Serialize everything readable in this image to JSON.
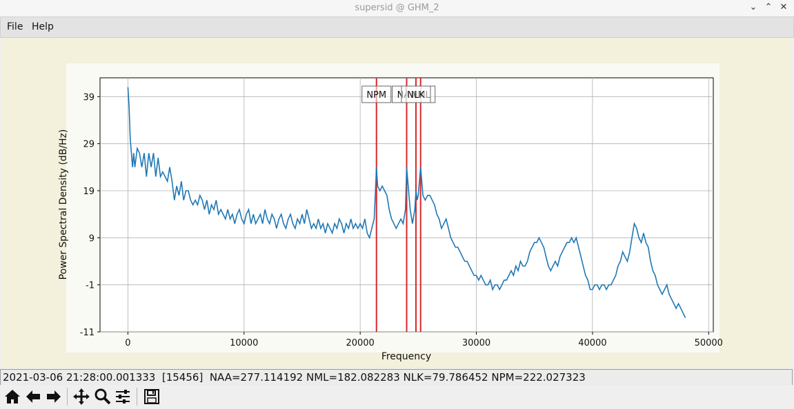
{
  "window": {
    "title": "supersid @ GHM_2",
    "controls": [
      "chevron-down-icon",
      "chevron-up-icon",
      "close-icon"
    ]
  },
  "menu": {
    "file": "File",
    "help": "Help"
  },
  "status_text": "2021-03-06 21:28:00.001333  [15456]  NAA=277.114192 NML=182.082283 NLK=79.786452 NPM=222.027323",
  "toolbar": {
    "icons": [
      "home-icon",
      "back-icon",
      "forward-icon",
      "pan-icon",
      "zoom-icon",
      "configure-icon",
      "save-icon"
    ]
  },
  "chart_data": {
    "type": "line",
    "xlabel": "Frequency",
    "ylabel": "Power Spectral Density (dB/Hz)",
    "xlim": [
      -2400,
      50400
    ],
    "ylim": [
      -11,
      43
    ],
    "xticks": [
      0,
      10000,
      20000,
      30000,
      40000,
      50000
    ],
    "yticks": [
      -11,
      -1,
      9,
      19,
      29,
      39
    ],
    "grid": true,
    "line_color": "#1f77b4",
    "marker_color": "#d62728",
    "markers": [
      {
        "label": "NPM",
        "x": 21400
      },
      {
        "label": "NAA",
        "x": 24000
      },
      {
        "label": "NML",
        "x": 25200
      },
      {
        "label": "NLK",
        "x": 24800
      }
    ],
    "series": [
      {
        "points": [
          [
            0,
            41
          ],
          [
            100,
            37
          ],
          [
            200,
            30
          ],
          [
            300,
            27
          ],
          [
            400,
            24
          ],
          [
            500,
            27
          ],
          [
            600,
            24
          ],
          [
            800,
            28
          ],
          [
            1000,
            27
          ],
          [
            1200,
            24
          ],
          [
            1400,
            27
          ],
          [
            1600,
            22
          ],
          [
            1800,
            27
          ],
          [
            2000,
            24
          ],
          [
            2200,
            27
          ],
          [
            2400,
            22
          ],
          [
            2600,
            26
          ],
          [
            2800,
            22
          ],
          [
            3000,
            23
          ],
          [
            3200,
            22
          ],
          [
            3400,
            21
          ],
          [
            3600,
            24
          ],
          [
            3800,
            21
          ],
          [
            4000,
            17
          ],
          [
            4200,
            20
          ],
          [
            4400,
            18
          ],
          [
            4600,
            21
          ],
          [
            4800,
            17
          ],
          [
            5000,
            19
          ],
          [
            5200,
            19
          ],
          [
            5400,
            17
          ],
          [
            5600,
            16
          ],
          [
            5800,
            17
          ],
          [
            6000,
            16
          ],
          [
            6200,
            18
          ],
          [
            6400,
            17
          ],
          [
            6600,
            15
          ],
          [
            6800,
            17
          ],
          [
            7000,
            14
          ],
          [
            7200,
            16
          ],
          [
            7400,
            15
          ],
          [
            7600,
            17
          ],
          [
            7800,
            14
          ],
          [
            8000,
            15
          ],
          [
            8200,
            14
          ],
          [
            8400,
            13
          ],
          [
            8600,
            15
          ],
          [
            8800,
            13
          ],
          [
            9000,
            14
          ],
          [
            9200,
            12
          ],
          [
            9400,
            14
          ],
          [
            9600,
            15
          ],
          [
            9800,
            13
          ],
          [
            10000,
            12
          ],
          [
            10200,
            14
          ],
          [
            10400,
            15
          ],
          [
            10600,
            12
          ],
          [
            10800,
            14
          ],
          [
            11000,
            12
          ],
          [
            11200,
            13
          ],
          [
            11400,
            14
          ],
          [
            11600,
            12
          ],
          [
            11800,
            15
          ],
          [
            12000,
            13
          ],
          [
            12200,
            12
          ],
          [
            12400,
            14
          ],
          [
            12600,
            13
          ],
          [
            12800,
            11
          ],
          [
            13000,
            13
          ],
          [
            13200,
            14
          ],
          [
            13400,
            12
          ],
          [
            13600,
            11
          ],
          [
            13800,
            13
          ],
          [
            14000,
            14
          ],
          [
            14200,
            12
          ],
          [
            14400,
            11
          ],
          [
            14600,
            13
          ],
          [
            14800,
            12
          ],
          [
            15000,
            14
          ],
          [
            15200,
            12
          ],
          [
            15400,
            15
          ],
          [
            15600,
            13
          ],
          [
            15800,
            11
          ],
          [
            16000,
            12
          ],
          [
            16200,
            11
          ],
          [
            16400,
            13
          ],
          [
            16600,
            11
          ],
          [
            16800,
            12
          ],
          [
            17000,
            10
          ],
          [
            17200,
            12
          ],
          [
            17400,
            11
          ],
          [
            17600,
            10
          ],
          [
            17800,
            12
          ],
          [
            18000,
            11
          ],
          [
            18200,
            13
          ],
          [
            18400,
            12
          ],
          [
            18600,
            10
          ],
          [
            18800,
            12
          ],
          [
            19000,
            11
          ],
          [
            19200,
            13
          ],
          [
            19400,
            11
          ],
          [
            19600,
            12
          ],
          [
            19800,
            11
          ],
          [
            20000,
            12
          ],
          [
            20200,
            11
          ],
          [
            20400,
            13
          ],
          [
            20600,
            10
          ],
          [
            20800,
            9
          ],
          [
            21000,
            11
          ],
          [
            21200,
            13
          ],
          [
            21300,
            18
          ],
          [
            21400,
            24
          ],
          [
            21500,
            20
          ],
          [
            21700,
            19
          ],
          [
            21900,
            20
          ],
          [
            22100,
            19
          ],
          [
            22300,
            18
          ],
          [
            22500,
            15
          ],
          [
            22700,
            13
          ],
          [
            22900,
            12
          ],
          [
            23100,
            11
          ],
          [
            23300,
            12
          ],
          [
            23500,
            13
          ],
          [
            23700,
            12
          ],
          [
            23900,
            15
          ],
          [
            24000,
            24
          ],
          [
            24100,
            21
          ],
          [
            24300,
            15
          ],
          [
            24500,
            12
          ],
          [
            24700,
            15
          ],
          [
            24800,
            19
          ],
          [
            24900,
            17
          ],
          [
            25000,
            18
          ],
          [
            25100,
            21
          ],
          [
            25200,
            24
          ],
          [
            25300,
            21
          ],
          [
            25400,
            18
          ],
          [
            25600,
            17
          ],
          [
            25800,
            18
          ],
          [
            26000,
            18
          ],
          [
            26200,
            17
          ],
          [
            26400,
            16
          ],
          [
            26600,
            14
          ],
          [
            26800,
            13
          ],
          [
            27000,
            11
          ],
          [
            27200,
            12
          ],
          [
            27400,
            13
          ],
          [
            27600,
            11
          ],
          [
            27800,
            9
          ],
          [
            28000,
            8
          ],
          [
            28200,
            7
          ],
          [
            28400,
            7
          ],
          [
            28600,
            6
          ],
          [
            28800,
            5
          ],
          [
            29000,
            4
          ],
          [
            29200,
            4
          ],
          [
            29400,
            3
          ],
          [
            29600,
            2
          ],
          [
            29800,
            1
          ],
          [
            30000,
            1
          ],
          [
            30200,
            0
          ],
          [
            30400,
            1
          ],
          [
            30600,
            0
          ],
          [
            30800,
            -1
          ],
          [
            31000,
            -1
          ],
          [
            31200,
            0
          ],
          [
            31400,
            -2
          ],
          [
            31600,
            -1
          ],
          [
            31800,
            -1
          ],
          [
            32000,
            -2
          ],
          [
            32200,
            -1
          ],
          [
            32400,
            0
          ],
          [
            32600,
            0
          ],
          [
            32800,
            1
          ],
          [
            33000,
            2
          ],
          [
            33200,
            1
          ],
          [
            33400,
            3
          ],
          [
            33600,
            2
          ],
          [
            33800,
            4
          ],
          [
            34000,
            3
          ],
          [
            34200,
            3
          ],
          [
            34400,
            4
          ],
          [
            34600,
            6
          ],
          [
            34800,
            7
          ],
          [
            35000,
            8
          ],
          [
            35200,
            8
          ],
          [
            35400,
            9
          ],
          [
            35600,
            8
          ],
          [
            35800,
            7
          ],
          [
            36000,
            5
          ],
          [
            36200,
            3
          ],
          [
            36400,
            2
          ],
          [
            36600,
            3
          ],
          [
            36800,
            4
          ],
          [
            37000,
            3
          ],
          [
            37200,
            5
          ],
          [
            37400,
            6
          ],
          [
            37600,
            7
          ],
          [
            37800,
            8
          ],
          [
            38000,
            8
          ],
          [
            38200,
            9
          ],
          [
            38400,
            8
          ],
          [
            38600,
            9
          ],
          [
            38800,
            7
          ],
          [
            39000,
            5
          ],
          [
            39200,
            3
          ],
          [
            39400,
            1
          ],
          [
            39600,
            0
          ],
          [
            39800,
            -2
          ],
          [
            40000,
            -2
          ],
          [
            40200,
            -1
          ],
          [
            40400,
            -1
          ],
          [
            40600,
            -2
          ],
          [
            40800,
            -1
          ],
          [
            41000,
            -1
          ],
          [
            41200,
            -2
          ],
          [
            41400,
            -1
          ],
          [
            41600,
            -1
          ],
          [
            41800,
            0
          ],
          [
            42000,
            1
          ],
          [
            42200,
            3
          ],
          [
            42400,
            4
          ],
          [
            42600,
            6
          ],
          [
            42800,
            5
          ],
          [
            43000,
            4
          ],
          [
            43200,
            6
          ],
          [
            43400,
            9
          ],
          [
            43600,
            12
          ],
          [
            43800,
            11
          ],
          [
            44000,
            9
          ],
          [
            44200,
            8
          ],
          [
            44400,
            10
          ],
          [
            44600,
            8
          ],
          [
            44800,
            7
          ],
          [
            45000,
            4
          ],
          [
            45200,
            2
          ],
          [
            45400,
            1
          ],
          [
            45600,
            -1
          ],
          [
            45800,
            -2
          ],
          [
            46000,
            -3
          ],
          [
            46200,
            -2
          ],
          [
            46400,
            -1
          ],
          [
            46600,
            -3
          ],
          [
            46800,
            -4
          ],
          [
            47000,
            -5
          ],
          [
            47200,
            -6
          ],
          [
            47400,
            -5
          ],
          [
            47600,
            -6
          ],
          [
            47800,
            -7
          ],
          [
            48000,
            -8
          ]
        ]
      }
    ]
  }
}
